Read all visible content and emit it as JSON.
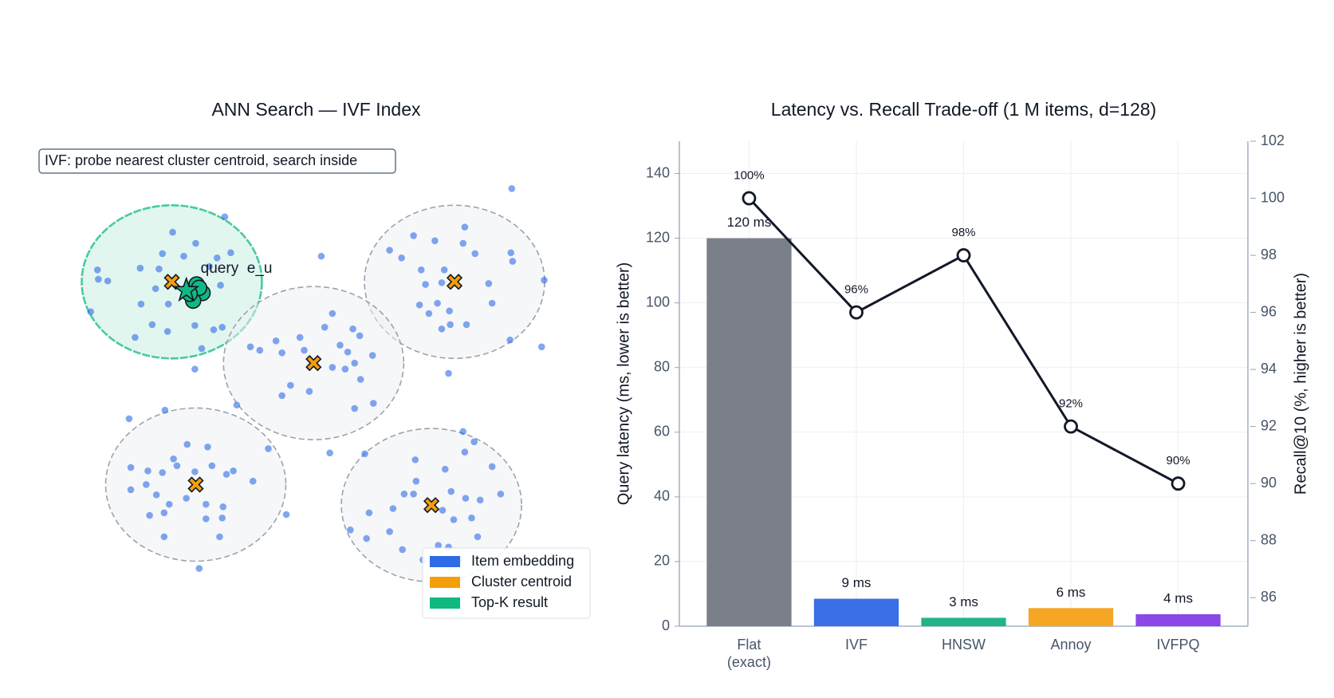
{
  "chart_data": [
    {
      "type": "scatter",
      "title": "ANN Search — IVF Index",
      "annotation": "IVF: probe nearest cluster centroid, search inside",
      "xlim": [
        0.4,
        7.0
      ],
      "ylim": [
        0.6,
        6.4
      ],
      "legend": "lower right",
      "series": [
        {
          "name": "Item embedding",
          "color": "#2f6be6",
          "x": [
            2.02,
            2.63,
            2.29,
            1.9,
            2.15,
            2.7,
            2.54,
            1.64,
            1.86,
            2.45,
            1.14,
            1.26,
            1.15,
            1.82,
            2.58,
            1.06,
            1.65,
            1.97,
            1.78,
            2.28,
            1.96,
            1.58,
            2.5,
            2.36,
            2.28,
            2.6,
            5.99,
            5.44,
            4.84,
            5.09,
            5.42,
            4.56,
            5.98,
            4.7,
            5.56,
            6.0,
            4.93,
            5.2,
            6.37,
            5.72,
            4.98,
            5.17,
            4.91,
            5.12,
            5.76,
            5.02,
            5.26,
            5.27,
            5.17,
            5.46,
            5.97,
            6.34,
            5.25,
            3.76,
            3.89,
            3.8,
            4.13,
            4.21,
            3.51,
            2.93,
            3.23,
            3.04,
            3.3,
            3.56,
            3.98,
            4.07,
            4.36,
            4.15,
            3.89,
            4.04,
            3.4,
            3.62,
            3.3,
            4.37,
            2.77,
            4.15,
            4.22,
            3.86,
            1.51,
            1.93,
            2.19,
            2.43,
            3.14,
            1.53,
            1.73,
            2.03,
            2.07,
            2.28,
            2.48,
            2.65,
            2.73,
            1.9,
            2.96,
            1.53,
            1.71,
            1.83,
            2.18,
            1.98,
            2.41,
            2.61,
            1.75,
            1.92,
            2.41,
            2.6,
            3.35,
            1.92,
            2.57,
            2.33,
            5.42,
            5.55,
            4.27,
            4.86,
            5.44,
            5.21,
            5.76,
            4.87,
            4.73,
            4.84,
            5.28,
            5.45,
            5.62,
            5.86,
            4.6,
            5.18,
            5.52,
            5.31,
            4.32,
            4.1,
            4.29,
            4.56,
            4.71,
            5.13,
            5.25,
            5.59,
            5.38,
            4.95
          ],
          "y": [
            5.28,
            5.46,
            5.15,
            5.03,
            5.0,
            5.04,
            4.98,
            4.86,
            4.85,
            4.88,
            4.84,
            4.71,
            4.73,
            4.62,
            4.66,
            4.35,
            4.44,
            4.44,
            4.2,
            4.19,
            4.12,
            4.05,
            4.14,
            3.92,
            3.68,
            4.17,
            5.79,
            5.34,
            5.24,
            5.18,
            5.15,
            5.07,
            5.04,
            4.98,
            5.03,
            4.94,
            4.84,
            4.84,
            4.72,
            4.68,
            4.67,
            4.69,
            4.43,
            4.45,
            4.45,
            4.33,
            4.36,
            4.2,
            4.15,
            4.2,
            4.02,
            3.94,
            3.63,
            5.0,
            4.33,
            4.17,
            4.15,
            4.07,
            4.05,
            3.94,
            4.01,
            3.9,
            3.87,
            3.9,
            3.96,
            3.88,
            3.84,
            3.75,
            3.7,
            3.68,
            3.49,
            3.42,
            3.37,
            3.28,
            3.26,
            3.22,
            3.56,
            2.7,
            3.1,
            3.2,
            2.8,
            2.77,
            2.75,
            2.53,
            2.49,
            2.63,
            2.55,
            2.48,
            2.55,
            2.45,
            2.49,
            2.47,
            2.37,
            2.27,
            2.33,
            2.21,
            2.17,
            2.1,
            2.1,
            2.07,
            1.97,
            2.0,
            1.93,
            1.94,
            1.98,
            1.72,
            1.72,
            1.35,
            2.95,
            2.83,
            2.69,
            2.62,
            2.71,
            2.51,
            2.54,
            2.37,
            2.22,
            2.22,
            2.25,
            2.17,
            2.15,
            2.22,
            2.05,
            2.03,
            1.94,
            1.92,
            2.0,
            1.8,
            1.7,
            1.78,
            1.57,
            1.62,
            1.6,
            1.72,
            1.45,
            1.45
          ]
        },
        {
          "name": "Cluster centroid",
          "color": "#f59e0b",
          "x": [
            2.01,
            5.32,
            3.67,
            2.29,
            5.05
          ],
          "y": [
            4.7,
            4.7,
            3.75,
            2.33,
            2.09
          ]
        },
        {
          "name": "Top-K result",
          "color": "#10b981",
          "x": [
            2.3,
            2.37,
            2.26,
            2.33,
            2.22
          ],
          "y": [
            4.67,
            4.57,
            4.48,
            4.63,
            4.56
          ]
        }
      ],
      "query": {
        "label": "query  e_u",
        "x": 2.18,
        "y": 4.6
      }
    },
    {
      "type": "bar",
      "title": "Latency vs. Recall Trade-off (1 M items, d=128)",
      "ylabel": "Query latency (ms, lower is better)",
      "y2label": "Recall@10 (%, higher is better)",
      "categories": [
        "Flat\n(exact)",
        "IVF",
        "HNSW",
        "Annoy",
        "IVFPQ"
      ],
      "ylim": [
        0,
        150
      ],
      "yticks": [
        0,
        20,
        40,
        60,
        80,
        100,
        120,
        140
      ],
      "y2lim": [
        85,
        102
      ],
      "y2ticks": [
        86,
        88,
        90,
        92,
        94,
        96,
        98,
        100,
        102
      ],
      "grid": true,
      "series": [
        {
          "type": "bar",
          "values": [
            120,
            8.5,
            2.6,
            5.6,
            3.7
          ],
          "value_labels": [
            "120 ms",
            "9 ms",
            "3 ms",
            "6 ms",
            "4 ms"
          ],
          "colors": [
            "#7a7f8a",
            "#3b6fe8",
            "#22b489",
            "#f5a623",
            "#8b47e8"
          ]
        },
        {
          "type": "line",
          "axis": "y2",
          "color": "#111827",
          "values": [
            100,
            96,
            98,
            92,
            90
          ],
          "value_labels": [
            "100%",
            "96%",
            "98%",
            "92%",
            "90%"
          ]
        }
      ]
    }
  ]
}
